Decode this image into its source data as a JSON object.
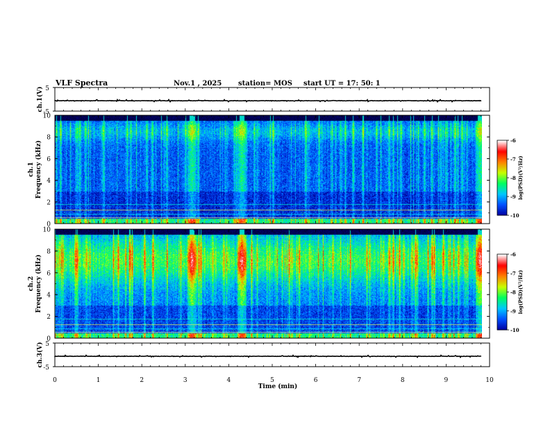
{
  "header": {
    "title": "VLF Spectra",
    "date": "Nov.1 , 2025",
    "station": "station= MOS",
    "start": "start UT = 17: 50: 1"
  },
  "colors": {
    "spectrogram_background": "#000014",
    "colormap": [
      "#000000",
      "#0000a0",
      "#0050ff",
      "#00c8ff",
      "#00ff60",
      "#c8ff00",
      "#ff8000",
      "#ff0000",
      "#ffffff"
    ]
  },
  "chart_data": [
    {
      "type": "line",
      "name": "ch1-waveform",
      "ylabel": "ch.1(V)",
      "ylim": [
        -5,
        5
      ],
      "yticks": [
        "5",
        "-5"
      ],
      "baseline_value": -0.6
    },
    {
      "type": "heatmap",
      "name": "ch1-spectrogram",
      "ylabel_line1": "ch.1",
      "ylabel_line2": "Frequency (kHz)",
      "ylim": [
        0,
        10
      ],
      "yticks": [
        "10",
        "8",
        "6",
        "4",
        "2",
        "0"
      ],
      "xlim": [
        0,
        10
      ],
      "data_end_min": 9.82,
      "dense_band_khz": [
        0.5,
        9.5
      ],
      "colorbar": {
        "label": "log(PSD)(V²/Hz)",
        "ticks": [
          "-6",
          "-7",
          "-8",
          "-9",
          "-10"
        ],
        "range": [
          -10,
          -6
        ]
      }
    },
    {
      "type": "heatmap",
      "name": "ch2-spectrogram",
      "ylabel_line1": "ch.2",
      "ylabel_line2": "Frequency (kHz)",
      "ylim": [
        0,
        10
      ],
      "yticks": [
        "10",
        "8",
        "6",
        "4",
        "2",
        "0"
      ],
      "xlim": [
        0,
        10
      ],
      "data_end_min": 9.82,
      "dense_band_khz": [
        0.5,
        9.5
      ],
      "colorbar": {
        "label": "log(PSD)(V²/Hz)",
        "ticks": [
          "-6",
          "-7",
          "-8",
          "-9",
          "-10"
        ],
        "range": [
          -10,
          -6
        ]
      }
    },
    {
      "type": "line",
      "name": "ch3-waveform",
      "ylabel": "ch.3(V)",
      "ylim": [
        -5,
        5
      ],
      "yticks": [
        "5",
        "-5"
      ],
      "baseline_value": -0.6
    }
  ],
  "x_axis": {
    "label": "Time (min)",
    "range": [
      0,
      10
    ],
    "ticks": [
      "0",
      "1",
      "2",
      "3",
      "4",
      "5",
      "6",
      "7",
      "8",
      "9",
      "10"
    ]
  }
}
